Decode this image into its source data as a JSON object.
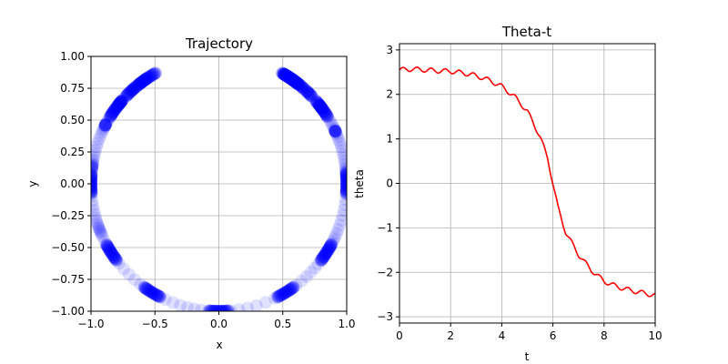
{
  "chart_data": [
    {
      "type": "scatter",
      "title": "Trajectory",
      "xlabel": "x",
      "ylabel": "y",
      "xlim": [
        -1.0,
        1.0
      ],
      "ylim": [
        -1.0,
        1.0
      ],
      "grid": true,
      "color": "#0000ff",
      "xticks": [
        -1.0,
        -0.5,
        0.0,
        0.5,
        1.0
      ],
      "xtick_labels": [
        "−1.0",
        "−0.5",
        "0.0",
        "0.5",
        "1.0"
      ],
      "yticks": [
        -1.0,
        -0.75,
        -0.5,
        -0.25,
        0.0,
        0.25,
        0.5,
        0.75,
        1.0
      ],
      "ytick_labels": [
        "−1.00",
        "−0.75",
        "−0.50",
        "−0.25",
        "0.00",
        "0.25",
        "0.50",
        "0.75",
        "1.00"
      ],
      "trajectory_note": "points (x=sin(theta), y=-cos(theta)) on unit circle from theta-t series",
      "dense_theta": [
        2.55,
        2.2,
        1.57,
        -1.57,
        -2.2,
        -2.55,
        0.0,
        0.55,
        -0.55,
        1.0,
        -1.0
      ]
    },
    {
      "type": "line",
      "title": "Theta-t",
      "xlabel": "t",
      "ylabel": "theta",
      "xlim": [
        0,
        10
      ],
      "ylim": [
        -3.14,
        3.14
      ],
      "grid": true,
      "color": "#ff0000",
      "xticks": [
        0,
        2,
        4,
        6,
        8,
        10
      ],
      "xtick_labels": [
        "0",
        "2",
        "4",
        "6",
        "8",
        "10"
      ],
      "yticks": [
        -3,
        -2,
        -1,
        0,
        1,
        2,
        3
      ],
      "ytick_labels": [
        "−3",
        "−2",
        "−1",
        "0",
        "1",
        "2",
        "3"
      ],
      "anchors": {
        "t": [
          0,
          0.5,
          1.0,
          1.5,
          2.0,
          2.5,
          3.0,
          3.5,
          4.0,
          4.5,
          5.0,
          5.5,
          5.8,
          6.0,
          6.2,
          6.5,
          7.0,
          7.5,
          8.0,
          8.5,
          9.0,
          9.5,
          10.0
        ],
        "theta": [
          2.55,
          2.57,
          2.55,
          2.53,
          2.52,
          2.48,
          2.42,
          2.32,
          2.18,
          1.95,
          1.62,
          1.05,
          0.55,
          0.0,
          -0.55,
          -1.1,
          -1.6,
          -1.95,
          -2.2,
          -2.32,
          -2.4,
          -2.46,
          -2.52
        ]
      },
      "wiggle_amplitude": 0.05,
      "wiggle_period": 0.55
    }
  ]
}
